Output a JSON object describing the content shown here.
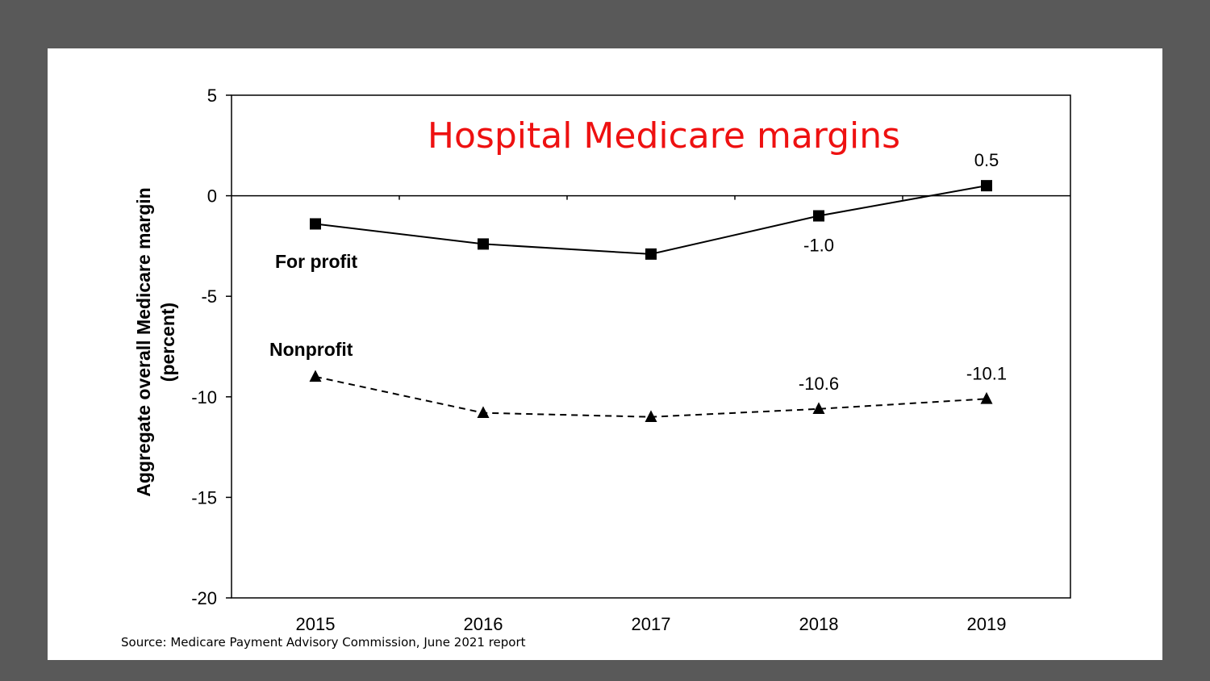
{
  "chart_data": {
    "type": "line",
    "title": "Hospital Medicare margins",
    "ylabel_lines": [
      "Aggregate overall Medicare margin",
      "(percent)"
    ],
    "xlabel": "",
    "categories": [
      "2015",
      "2016",
      "2017",
      "2018",
      "2019"
    ],
    "ylim": [
      -20,
      5
    ],
    "yticks": [
      5,
      0,
      -5,
      -10,
      -15,
      -20
    ],
    "grid": false,
    "series": [
      {
        "name": "For profit",
        "values": [
          -1.4,
          -2.4,
          -2.9,
          -1.0,
          0.5
        ],
        "marker": "square",
        "line": "solid",
        "data_labels": [
          null,
          null,
          null,
          "-1.0",
          "0.5"
        ]
      },
      {
        "name": "Nonprofit",
        "values": [
          -9.0,
          -10.8,
          -11.0,
          -10.6,
          -10.1
        ],
        "marker": "triangle",
        "line": "dashed",
        "data_labels": [
          null,
          null,
          null,
          "-10.6",
          "-10.1"
        ]
      }
    ],
    "source": "Source: Medicare Payment Advisory Commission, June 2021 report"
  },
  "colors": {
    "background": "#595959",
    "panel": "#ffffff",
    "title": "#ee1111",
    "series": "#000000"
  }
}
